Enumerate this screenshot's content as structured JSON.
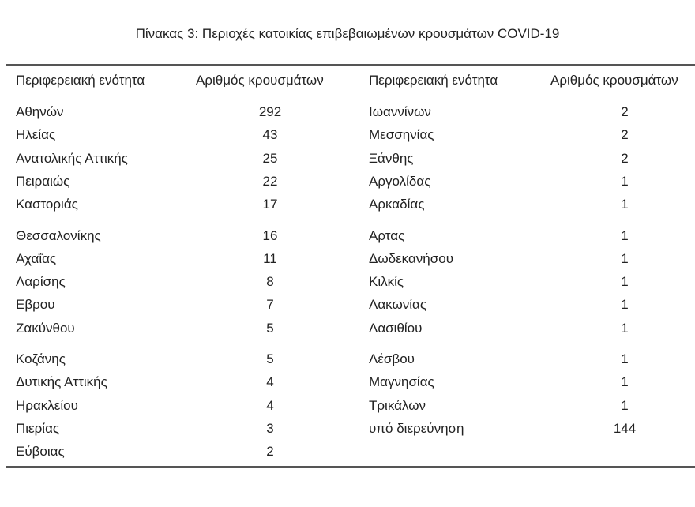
{
  "title": "Πίνακας 3: Περιοχές κατοικίας επιβεβαιωμένων κρουσμάτων COVID-19",
  "headers": [
    "Περιφερειακή ενότητα",
    "Αριθμός κρουσμάτων",
    "Περιφερειακή ενότητα",
    "Αριθμός κρουσμάτων"
  ],
  "left": [
    {
      "region": "Αθηνών",
      "cases": "292"
    },
    {
      "region": "Ηλείας",
      "cases": "43"
    },
    {
      "region": "Ανατολικής Αττικής",
      "cases": "25"
    },
    {
      "region": "Πειραιώς",
      "cases": "22"
    },
    {
      "region": "Καστοριάς",
      "cases": "17"
    },
    {
      "region": "Θεσσαλονίκης",
      "cases": "16"
    },
    {
      "region": "Αχαΐας",
      "cases": "11"
    },
    {
      "region": "Λαρίσης",
      "cases": "8"
    },
    {
      "region": "Εβρου",
      "cases": "7"
    },
    {
      "region": "Ζακύνθου",
      "cases": "5"
    },
    {
      "region": "Κοζάνης",
      "cases": "5"
    },
    {
      "region": "Δυτικής Αττικής",
      "cases": "4"
    },
    {
      "region": "Ηρακλείου",
      "cases": "4"
    },
    {
      "region": "Πιερίας",
      "cases": "3"
    },
    {
      "region": "Εύβοιας",
      "cases": "2"
    }
  ],
  "right": [
    {
      "region": "Ιωαννίνων",
      "cases": "2"
    },
    {
      "region": "Μεσσηνίας",
      "cases": "2"
    },
    {
      "region": "Ξάνθης",
      "cases": "2"
    },
    {
      "region": "Αργολίδας",
      "cases": "1"
    },
    {
      "region": "Αρκαδίας",
      "cases": "1"
    },
    {
      "region": "Αρτας",
      "cases": "1"
    },
    {
      "region": "Δωδεκανήσου",
      "cases": "1"
    },
    {
      "region": "Κιλκίς",
      "cases": "1"
    },
    {
      "region": "Λακωνίας",
      "cases": "1"
    },
    {
      "region": "Λασιθίου",
      "cases": "1"
    },
    {
      "region": "Λέσβου",
      "cases": "1"
    },
    {
      "region": "Μαγνησίας",
      "cases": "1"
    },
    {
      "region": "Τρικάλων",
      "cases": "1"
    },
    {
      "region": "υπό διερεύνηση",
      "cases": "144"
    }
  ]
}
